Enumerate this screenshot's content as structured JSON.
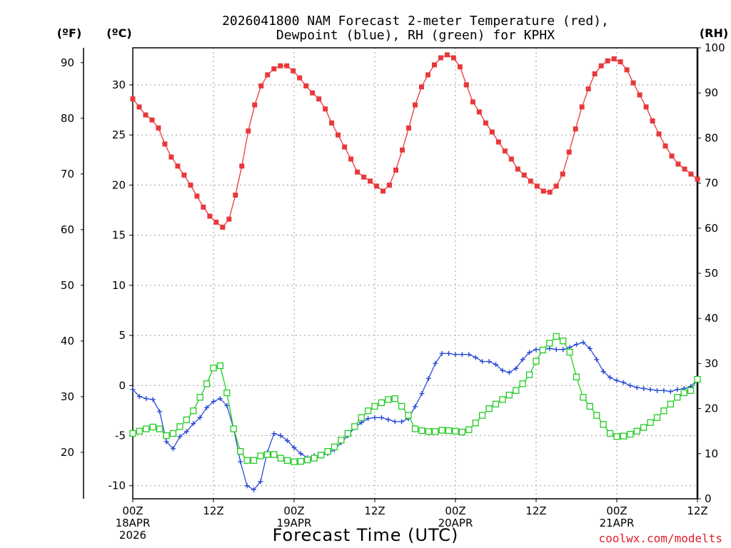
{
  "chart_data": {
    "type": "line",
    "title_line1": "2026041800 NAM Forecast 2-meter Temperature (red),",
    "title_line2": "Dewpoint (blue), RH (green) for KPHX",
    "xlabel": "Forecast Time (UTC)",
    "credit": "coolwx.com/modelts",
    "units": {
      "fahrenheit": "(ºF)",
      "celsius": "(ºC)",
      "rh": "(RH)"
    },
    "x_range_hours": [
      0,
      84
    ],
    "x_ticks": [
      {
        "hour": 0,
        "lines": [
          "00Z",
          "18APR",
          "2026"
        ]
      },
      {
        "hour": 12,
        "lines": [
          "12Z"
        ]
      },
      {
        "hour": 24,
        "lines": [
          "00Z",
          "19APR"
        ]
      },
      {
        "hour": 36,
        "lines": [
          "12Z"
        ]
      },
      {
        "hour": 48,
        "lines": [
          "00Z",
          "20APR"
        ]
      },
      {
        "hour": 60,
        "lines": [
          "12Z"
        ]
      },
      {
        "hour": 72,
        "lines": [
          "00Z",
          "21APR"
        ]
      },
      {
        "hour": 84,
        "lines": [
          "12Z"
        ]
      }
    ],
    "y_celsius_range": [
      -11.3,
      33.7
    ],
    "y_celsius_ticks": [
      30,
      25,
      20,
      15,
      10,
      5,
      0,
      -5,
      -10
    ],
    "y_fahrenheit_ticks": [
      90,
      80,
      70,
      60,
      50,
      40,
      30,
      20
    ],
    "y_rh_range": [
      0,
      100
    ],
    "y_rh_ticks": [
      0,
      10,
      20,
      30,
      40,
      50,
      60,
      70,
      80,
      90,
      100
    ],
    "grid": true,
    "series": [
      {
        "name": "Temperature",
        "color": "#e8383c",
        "marker": "filled-square",
        "unit": "C",
        "values": [
          28.6,
          27.8,
          27.0,
          26.5,
          25.7,
          24.1,
          22.8,
          21.9,
          21.0,
          20.0,
          18.9,
          17.8,
          16.9,
          16.3,
          15.8,
          16.6,
          19.0,
          21.9,
          25.4,
          28.0,
          29.9,
          31.0,
          31.6,
          31.9,
          31.9,
          31.4,
          30.7,
          29.9,
          29.2,
          28.6,
          27.6,
          26.2,
          25.0,
          23.8,
          22.6,
          21.3,
          20.8,
          20.4,
          19.9,
          19.4,
          20.0,
          21.5,
          23.5,
          25.7,
          28.0,
          29.8,
          31.0,
          32.0,
          32.7,
          33.0,
          32.7,
          31.8,
          30.0,
          28.3,
          27.3,
          26.2,
          25.3,
          24.3,
          23.4,
          22.6,
          21.6,
          21.0,
          20.4,
          19.9,
          19.4,
          19.3,
          19.9,
          21.1,
          23.3,
          25.6,
          27.8,
          29.6,
          31.1,
          31.9,
          32.4,
          32.6,
          32.3,
          31.5,
          30.2,
          29.0,
          27.8,
          26.4,
          25.1,
          23.9,
          22.9,
          22.1,
          21.6,
          21.1,
          20.6
        ]
      },
      {
        "name": "Dewpoint",
        "color": "#2a4bd8",
        "marker": "plus",
        "unit": "C",
        "values": [
          -0.4,
          -1.1,
          -1.3,
          -1.4,
          -2.6,
          -5.6,
          -6.3,
          -5.1,
          -4.6,
          -3.8,
          -3.2,
          -2.2,
          -1.6,
          -1.3,
          -2.0,
          -4.3,
          -7.6,
          -10.0,
          -10.4,
          -9.6,
          -6.7,
          -4.8,
          -5.0,
          -5.5,
          -6.2,
          -6.8,
          -7.2,
          -7.0,
          -7.0,
          -6.8,
          -6.4,
          -5.7,
          -5.0,
          -4.2,
          -3.7,
          -3.3,
          -3.2,
          -3.2,
          -3.4,
          -3.6,
          -3.6,
          -3.3,
          -2.1,
          -0.8,
          0.7,
          2.2,
          3.2,
          3.2,
          3.1,
          3.1,
          3.1,
          2.8,
          2.4,
          2.4,
          2.1,
          1.5,
          1.3,
          1.7,
          2.6,
          3.3,
          3.6,
          3.6,
          3.7,
          3.6,
          3.6,
          3.8,
          4.1,
          4.3,
          3.7,
          2.6,
          1.4,
          0.8,
          0.5,
          0.3,
          0.0,
          -0.2,
          -0.3,
          -0.4,
          -0.5,
          -0.5,
          -0.6,
          -0.4,
          -0.3,
          -0.1,
          0.6
        ]
      },
      {
        "name": "RH",
        "color": "#22cc22",
        "marker": "open-square",
        "unit": "%",
        "values": [
          14.5,
          15.0,
          15.5,
          15.9,
          15.5,
          14.0,
          14.5,
          16.0,
          17.5,
          19.5,
          22.5,
          25.5,
          29.0,
          29.5,
          23.5,
          15.5,
          10.5,
          8.5,
          8.5,
          9.5,
          9.8,
          9.8,
          9.0,
          8.5,
          8.2,
          8.3,
          8.6,
          9.0,
          9.7,
          10.5,
          11.5,
          13.0,
          14.5,
          16.0,
          18.0,
          19.5,
          20.5,
          21.3,
          22.0,
          22.2,
          20.5,
          18.5,
          15.5,
          15.1,
          14.9,
          14.9,
          15.2,
          15.1,
          15.0,
          14.8,
          15.3,
          16.8,
          18.5,
          20.0,
          21.0,
          22.0,
          23.0,
          24.0,
          25.5,
          27.5,
          30.5,
          33.0,
          34.5,
          36.0,
          35.0,
          32.5,
          27.0,
          22.5,
          20.5,
          18.5,
          16.5,
          14.5,
          13.8,
          13.9,
          14.3,
          15.0,
          15.8,
          16.9,
          18.0,
          19.5,
          21.0,
          22.5,
          23.5,
          24.0,
          26.5
        ]
      }
    ]
  }
}
